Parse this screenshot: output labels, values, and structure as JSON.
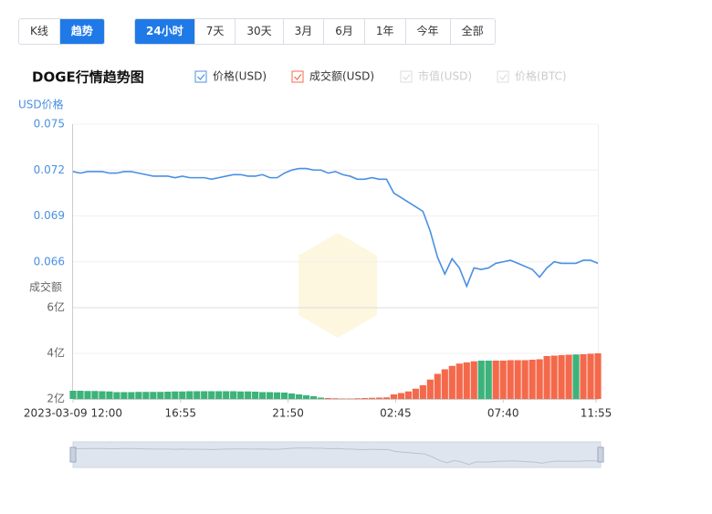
{
  "ui": {
    "tabs": [
      "K线",
      "趋势"
    ],
    "active_tab": 1,
    "ranges": [
      "24小时",
      "7天",
      "30天",
      "3月",
      "6月",
      "1年",
      "今年",
      "全部"
    ],
    "active_range": 0,
    "legend_disabled": [
      "市值(USD)",
      "价格(BTC)"
    ]
  },
  "chart_data": [
    {
      "type": "line",
      "title": "DOGE行情趋势图",
      "y_label": "USD价格",
      "x": [
        0,
        20,
        40,
        60,
        80,
        100,
        120,
        140,
        160,
        180,
        200,
        220,
        240,
        260,
        280,
        300,
        320,
        340,
        360,
        380,
        400,
        420,
        440,
        460,
        480,
        500,
        520,
        540,
        560,
        580,
        600,
        620,
        640,
        660,
        680,
        700,
        720,
        740,
        760,
        780,
        800,
        820,
        840,
        860,
        880,
        900,
        920,
        940,
        960,
        980,
        1000,
        1020,
        1040,
        1060,
        1080,
        1100,
        1120,
        1140,
        1160,
        1180,
        1200,
        1220,
        1240,
        1260,
        1280,
        1300,
        1320,
        1340,
        1360,
        1380,
        1400,
        1420,
        1440
      ],
      "xlim": [
        0,
        1440
      ],
      "ylim": [
        0.063,
        0.075
      ],
      "yticks": [
        0.075,
        0.072,
        0.069,
        0.066
      ],
      "grid": true,
      "series": [
        {
          "name": "价格(USD)",
          "color": "#4a90e2",
          "values": [
            0.0719,
            0.0718,
            0.0719,
            0.0719,
            0.0719,
            0.0718,
            0.0718,
            0.0719,
            0.0719,
            0.0718,
            0.0717,
            0.0716,
            0.0716,
            0.0716,
            0.0715,
            0.0716,
            0.0715,
            0.0715,
            0.0715,
            0.0714,
            0.0715,
            0.0716,
            0.0717,
            0.0717,
            0.0716,
            0.0716,
            0.0717,
            0.0715,
            0.0715,
            0.0718,
            0.072,
            0.0721,
            0.0721,
            0.072,
            0.072,
            0.0718,
            0.0719,
            0.0717,
            0.0716,
            0.0714,
            0.0714,
            0.0715,
            0.0714,
            0.0714,
            0.0705,
            0.0702,
            0.0699,
            0.0696,
            0.0693,
            0.068,
            0.0663,
            0.0652,
            0.0662,
            0.0656,
            0.0644,
            0.0656,
            0.0655,
            0.0656,
            0.0659,
            0.066,
            0.0661,
            0.0659,
            0.0657,
            0.0655,
            0.065,
            0.0656,
            0.066,
            0.0659,
            0.0659,
            0.0659,
            0.0661,
            0.0661,
            0.0659
          ]
        }
      ]
    },
    {
      "type": "bar",
      "y_label": "成交额",
      "x": [
        0,
        20,
        40,
        60,
        80,
        100,
        120,
        140,
        160,
        180,
        200,
        220,
        240,
        260,
        280,
        300,
        320,
        340,
        360,
        380,
        400,
        420,
        440,
        460,
        480,
        500,
        520,
        540,
        560,
        580,
        600,
        620,
        640,
        660,
        680,
        700,
        720,
        740,
        760,
        780,
        800,
        820,
        840,
        860,
        880,
        900,
        920,
        940,
        960,
        980,
        1000,
        1020,
        1040,
        1060,
        1080,
        1100,
        1120,
        1140,
        1160,
        1180,
        1200,
        1220,
        1240,
        1260,
        1280,
        1300,
        1320,
        1340,
        1360,
        1380,
        1400,
        1420,
        1440
      ],
      "xlim": [
        0,
        1440
      ],
      "ylim": [
        2,
        6
      ],
      "yticks": [
        {
          "value": 6,
          "label": "6亿"
        },
        {
          "value": 4,
          "label": "4亿"
        },
        {
          "value": 2,
          "label": "2亿"
        }
      ],
      "grid": true,
      "xticks": [
        {
          "value": 0,
          "label": "2023-03-09 12:00"
        },
        {
          "value": 295,
          "label": "16:55"
        },
        {
          "value": 590,
          "label": "21:50"
        },
        {
          "value": 885,
          "label": "02:45"
        },
        {
          "value": 1180,
          "label": "07:40"
        },
        {
          "value": 1435,
          "label": "11:55"
        }
      ],
      "series": [
        {
          "name": "成交额(USD)",
          "color": "#f4694b",
          "values": [
            2.36,
            2.36,
            2.35,
            2.35,
            2.34,
            2.33,
            2.3,
            2.3,
            2.3,
            2.31,
            2.31,
            2.31,
            2.31,
            2.32,
            2.33,
            2.33,
            2.34,
            2.34,
            2.34,
            2.34,
            2.34,
            2.34,
            2.34,
            2.33,
            2.33,
            2.32,
            2.3,
            2.3,
            2.29,
            2.28,
            2.24,
            2.2,
            2.16,
            2.12,
            2.06,
            2.04,
            2.03,
            2.02,
            2.02,
            2.03,
            2.04,
            2.05,
            2.06,
            2.07,
            2.2,
            2.26,
            2.33,
            2.45,
            2.6,
            2.85,
            3.1,
            3.3,
            3.45,
            3.55,
            3.6,
            3.65,
            3.68,
            3.68,
            3.68,
            3.68,
            3.7,
            3.7,
            3.7,
            3.72,
            3.74,
            3.88,
            3.9,
            3.92,
            3.94,
            3.95,
            3.96,
            3.98,
            4.0
          ],
          "bar_colors": [
            "#3cb37a",
            "#3cb37a",
            "#3cb37a",
            "#3cb37a",
            "#3cb37a",
            "#3cb37a",
            "#3cb37a",
            "#3cb37a",
            "#3cb37a",
            "#3cb37a",
            "#3cb37a",
            "#3cb37a",
            "#3cb37a",
            "#3cb37a",
            "#3cb37a",
            "#3cb37a",
            "#3cb37a",
            "#3cb37a",
            "#3cb37a",
            "#3cb37a",
            "#3cb37a",
            "#3cb37a",
            "#3cb37a",
            "#3cb37a",
            "#3cb37a",
            "#3cb37a",
            "#3cb37a",
            "#3cb37a",
            "#3cb37a",
            "#3cb37a",
            "#3cb37a",
            "#3cb37a",
            "#3cb37a",
            "#3cb37a",
            "#3cb37a",
            "#f4694b",
            "#f4694b",
            "#f4694b",
            "#f4694b",
            "#f4694b",
            "#f4694b",
            "#f4694b",
            "#f4694b",
            "#f4694b",
            "#f4694b",
            "#f4694b",
            "#f4694b",
            "#f4694b",
            "#f4694b",
            "#f4694b",
            "#f4694b",
            "#f4694b",
            "#f4694b",
            "#f4694b",
            "#f4694b",
            "#f4694b",
            "#3cb37a",
            "#3cb37a",
            "#f4694b",
            "#f4694b",
            "#f4694b",
            "#f4694b",
            "#f4694b",
            "#f4694b",
            "#f4694b",
            "#f4694b",
            "#f4694b",
            "#f4694b",
            "#f4694b",
            "#3cb37a",
            "#f4694b",
            "#f4694b",
            "#f4694b"
          ]
        }
      ]
    }
  ]
}
